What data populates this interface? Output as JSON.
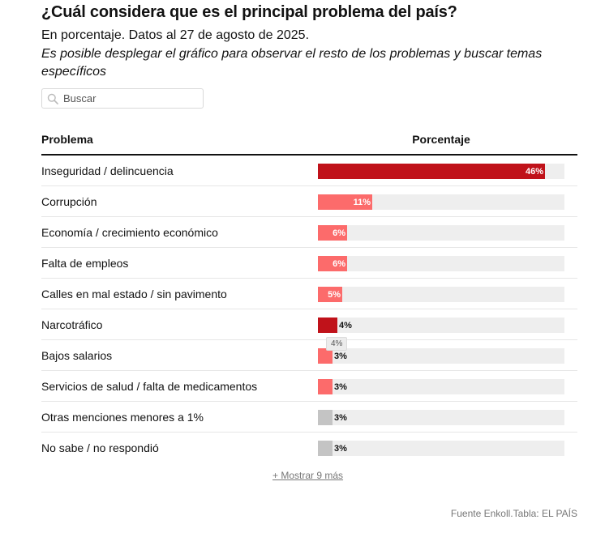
{
  "title": "¿Cuál considera que es el principal problema del país?",
  "subtitle": "En porcentaje. Datos al 27 de agosto de 2025.",
  "note": "Es posible desplegar el gráfico para observar el resto de los problemas y buscar temas específicos",
  "search": {
    "placeholder": "Buscar",
    "icon": "search-icon"
  },
  "table": {
    "header_problem": "Problema",
    "header_percentage": "Porcentaje"
  },
  "tooltip": "4%",
  "more_link": "+ Mostrar 9 más",
  "source": "Fuente Enkoll.Tabla: EL PAÍS",
  "colors": {
    "dark_red": "#c0121a",
    "light_red": "#fc6b6b",
    "grey": "#c4c4c4",
    "track": "#eeeeee"
  },
  "chart_data": {
    "type": "bar",
    "orientation": "horizontal",
    "xlim": [
      0,
      50
    ],
    "rows": [
      {
        "label": "Inseguridad / delincuencia",
        "value": 46,
        "display": "46%",
        "color": "dark_red",
        "label_inside": true
      },
      {
        "label": "Corrupción",
        "value": 11,
        "display": "11%",
        "color": "light_red",
        "label_inside": true
      },
      {
        "label": "Economía / crecimiento económico",
        "value": 6,
        "display": "6%",
        "color": "light_red",
        "label_inside": true
      },
      {
        "label": "Falta de empleos",
        "value": 6,
        "display": "6%",
        "color": "light_red",
        "label_inside": true
      },
      {
        "label": "Calles en mal estado / sin pavimento",
        "value": 5,
        "display": "5%",
        "color": "light_red",
        "label_inside": true
      },
      {
        "label": "Narcotráfico",
        "value": 4,
        "display": "4%",
        "color": "dark_red",
        "label_inside": false
      },
      {
        "label": "Bajos salarios",
        "value": 3,
        "display": "3%",
        "color": "light_red",
        "label_inside": false
      },
      {
        "label": "Servicios de salud / falta de medicamentos",
        "value": 3,
        "display": "3%",
        "color": "light_red",
        "label_inside": false
      },
      {
        "label": "Otras menciones menores a 1%",
        "value": 3,
        "display": "3%",
        "color": "grey",
        "label_inside": false
      },
      {
        "label": "No sabe / no respondió",
        "value": 3,
        "display": "3%",
        "color": "grey",
        "label_inside": false
      }
    ]
  }
}
